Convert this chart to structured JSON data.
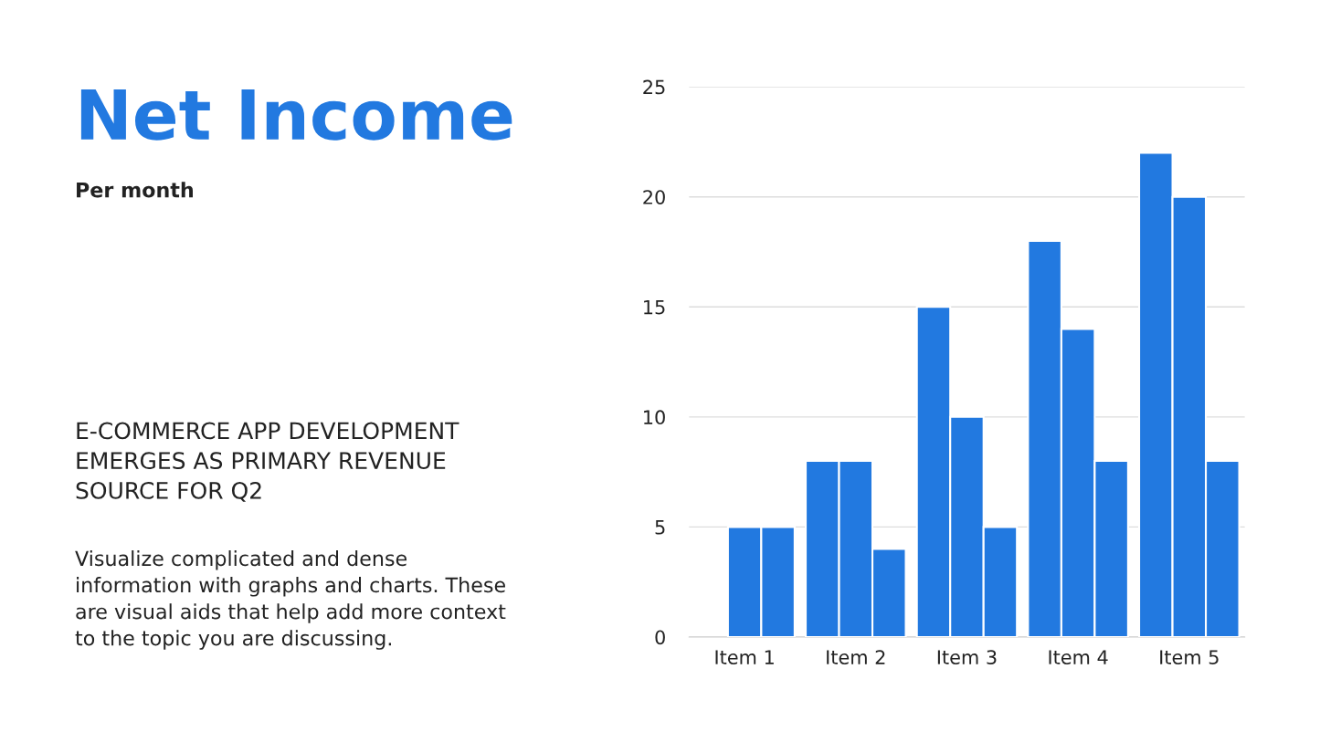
{
  "chart_data": {
    "type": "bar",
    "title": "Net Income",
    "subtitle": "Per month",
    "annotations": [
      "E-COMMERCE APP DEVELOPMENT\nEMERGES AS PRIMARY REVENUE\nSOURCE FOR Q2",
      "Visualize complicated and dense\ninformation with graphs and charts. These\nare visual aids that help add more context\nto the topic you are discussing."
    ],
    "categories": [
      "Item 1",
      "Item 2",
      "Item 3",
      "Item 4",
      "Item 5"
    ],
    "series": [
      {
        "color": "#2279e0",
        "values": [
          null,
          8,
          15,
          18,
          22
        ]
      },
      {
        "color": "#2279e0",
        "values": [
          5,
          8,
          10,
          14,
          20
        ]
      },
      {
        "color": "#2279e0",
        "values": [
          5,
          4,
          5,
          8,
          8
        ]
      }
    ],
    "ylim": [
      0,
      25
    ],
    "yticks": [
      0,
      5,
      10,
      15,
      20,
      25
    ],
    "grid": "y"
  }
}
